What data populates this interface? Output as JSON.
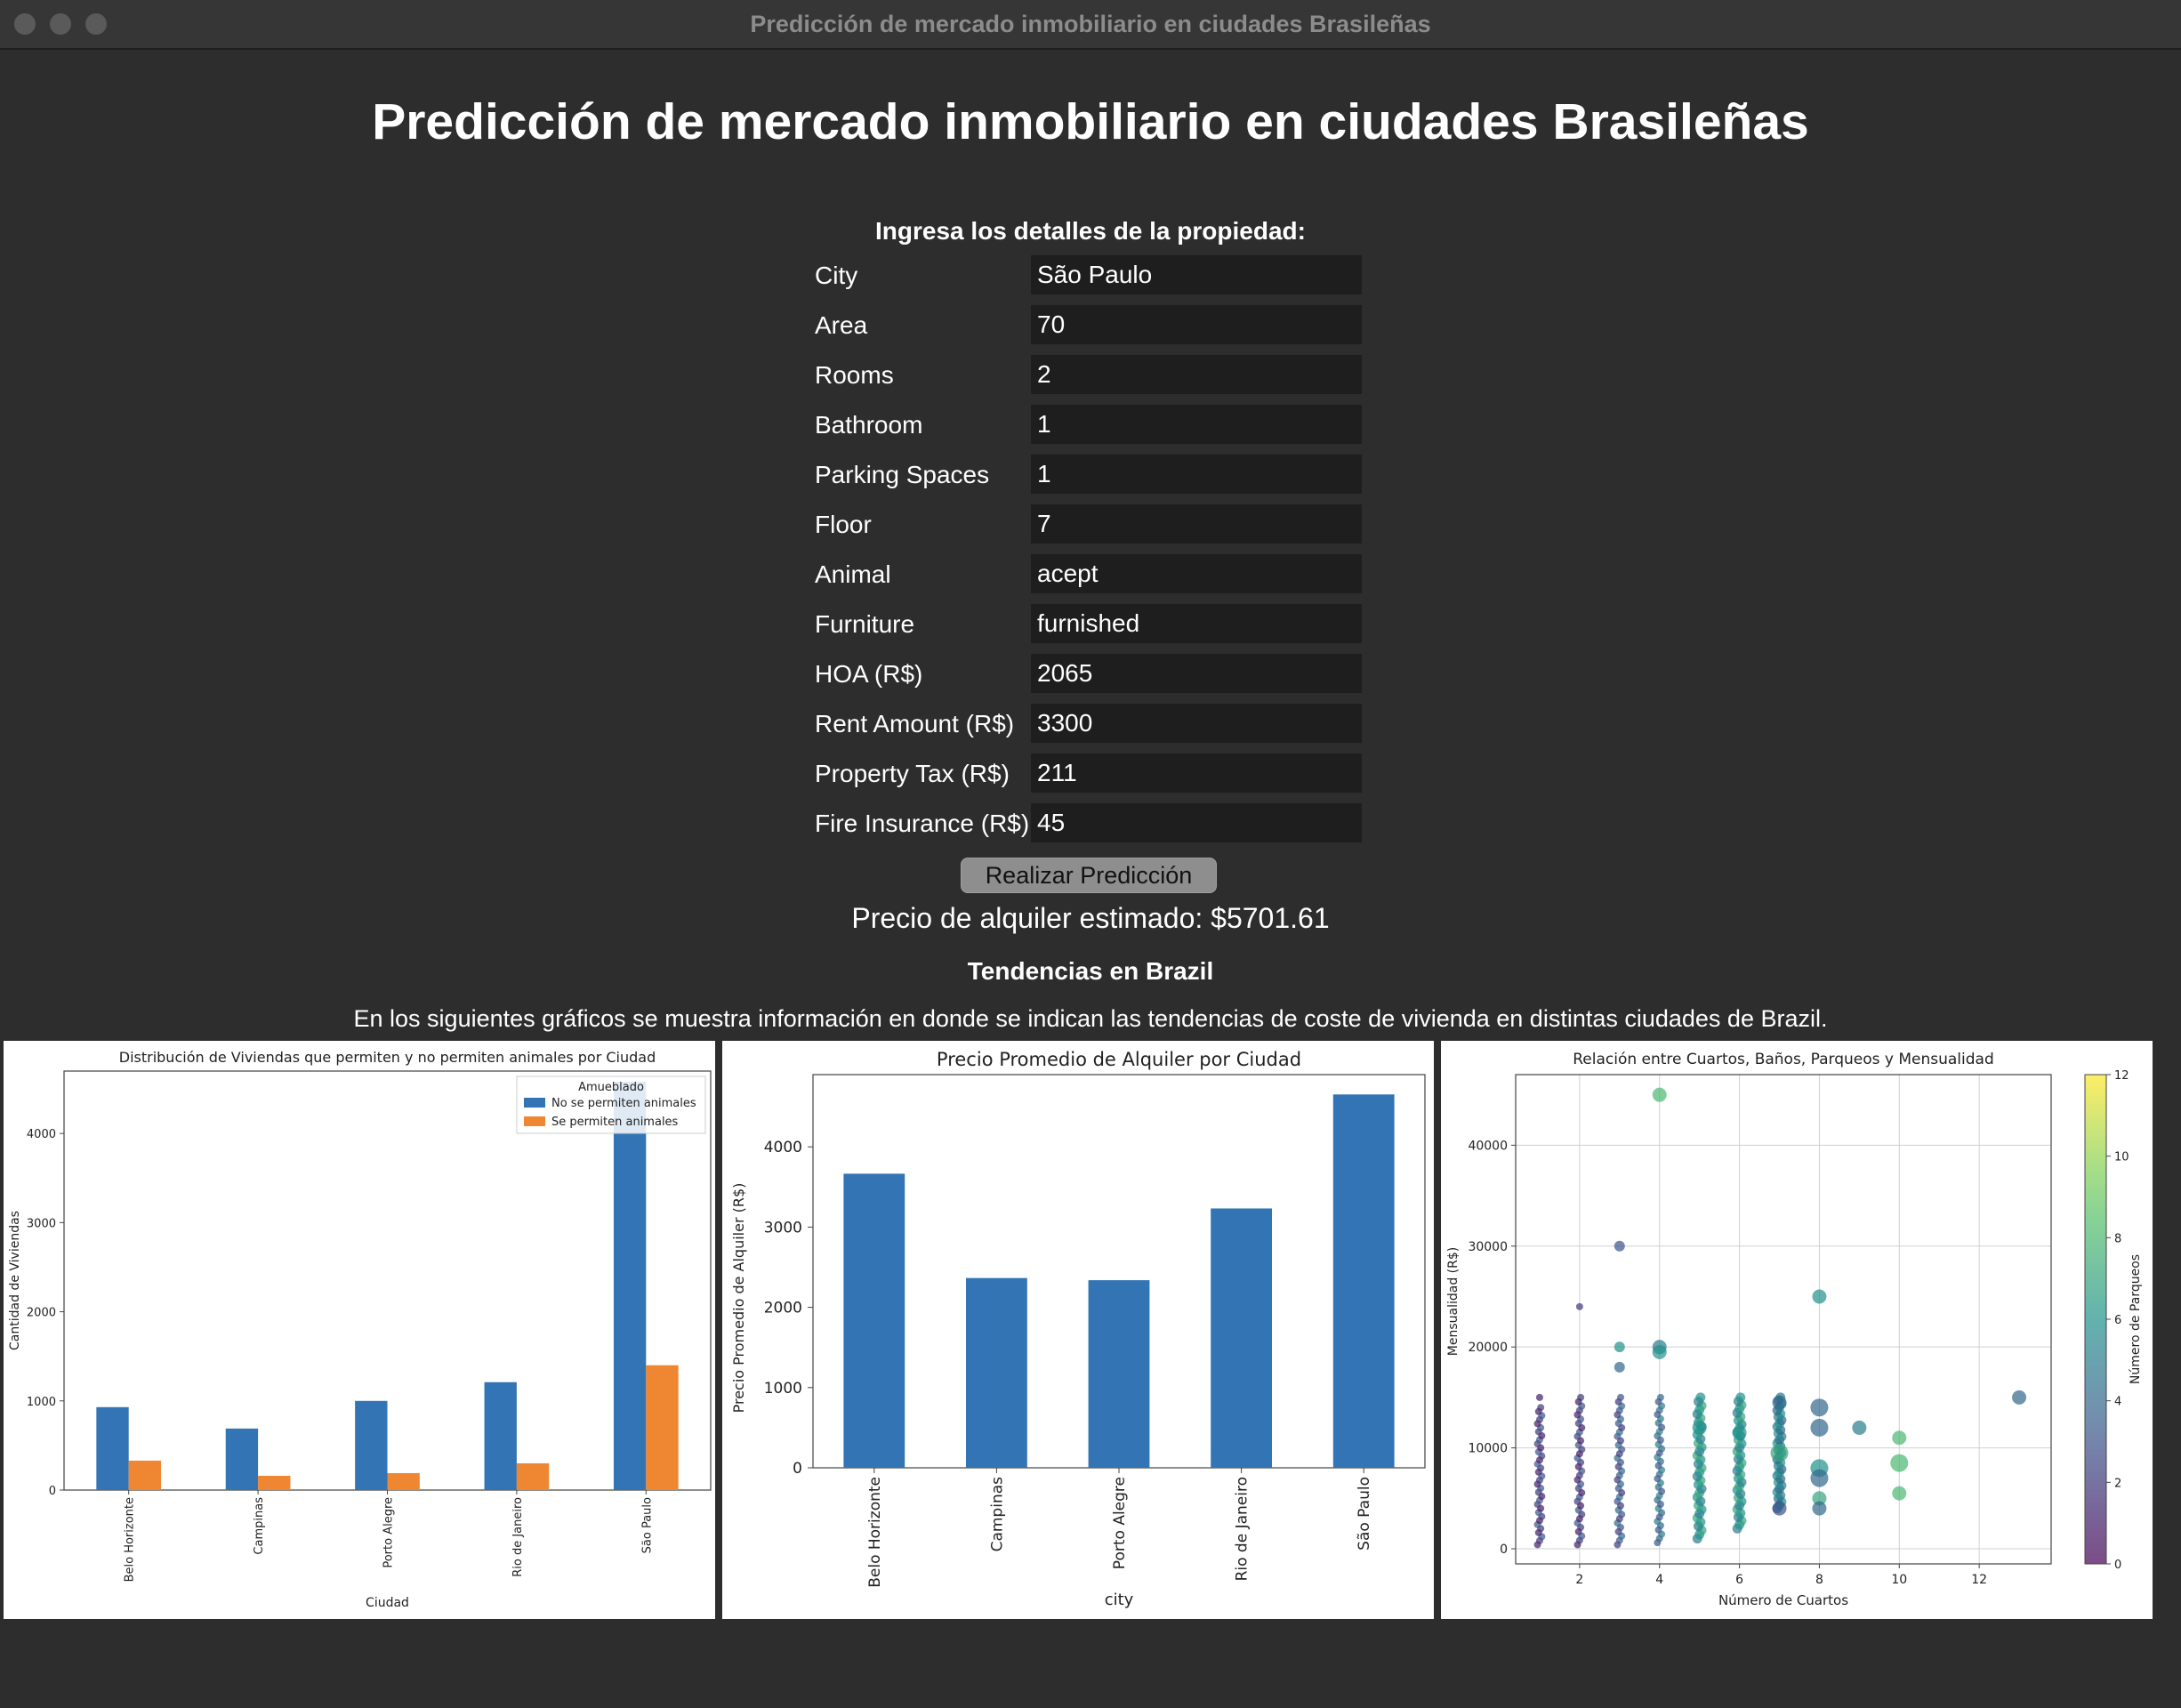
{
  "window": {
    "title": "Predicción de mercado inmobiliario en ciudades Brasileñas"
  },
  "header": {
    "title": "Predicción de mercado inmobiliario en ciudades Brasileñas"
  },
  "form": {
    "title": "Ingresa los detalles de la propiedad:",
    "fields": [
      {
        "label": "City",
        "value": "São Paulo"
      },
      {
        "label": "Area",
        "value": "70"
      },
      {
        "label": "Rooms",
        "value": "2"
      },
      {
        "label": "Bathroom",
        "value": "1"
      },
      {
        "label": "Parking Spaces",
        "value": "1"
      },
      {
        "label": "Floor",
        "value": "7"
      },
      {
        "label": "Animal",
        "value": "acept"
      },
      {
        "label": "Furniture",
        "value": "furnished"
      },
      {
        "label": "HOA (R$)",
        "value": "2065"
      },
      {
        "label": "Rent Amount (R$)",
        "value": "3300"
      },
      {
        "label": "Property Tax (R$)",
        "value": "211"
      },
      {
        "label": "Fire Insurance (R$)",
        "value": "45"
      }
    ],
    "submit_label": "Realizar Predicción",
    "result_text": "Precio de alquiler estimado: $5701.61"
  },
  "trends": {
    "title": "Tendencias en Brazil",
    "description": "En los siguientes gráficos se muestra información en donde se indican las tendencias de coste de vivienda en distintas ciudades de Brazil."
  },
  "chart_data": [
    {
      "type": "bar",
      "title": "Distribución de Viviendas que permiten y no permiten animales por Ciudad",
      "xlabel": "Ciudad",
      "ylabel": "Cantidad de Viviendas",
      "categories": [
        "Belo Horizonte",
        "Campinas",
        "Porto Alegre",
        "Rio de Janeiro",
        "São Paulo"
      ],
      "legend_title": "Amueblado",
      "legend_position": "top-right",
      "ylim": [
        0,
        4700
      ],
      "yticks": [
        0,
        1000,
        2000,
        3000,
        4000
      ],
      "grid": false,
      "series": [
        {
          "name": "No se permiten animales",
          "values": [
            930,
            690,
            1000,
            1210,
            4580
          ],
          "color": "#3274b4"
        },
        {
          "name": "Se permiten animales",
          "values": [
            330,
            160,
            190,
            300,
            1400
          ],
          "color": "#ee8632"
        }
      ]
    },
    {
      "type": "bar",
      "title": "Precio Promedio de Alquiler por Ciudad",
      "xlabel": "city",
      "ylabel": "Precio Promedio de Alquiler (R$)",
      "categories": [
        "Belo Horizonte",
        "Campinas",
        "Porto Alegre",
        "Rio de Janeiro",
        "São Paulo"
      ],
      "values": [
        3665,
        2365,
        2338,
        3232,
        4653
      ],
      "ylim": [
        0,
        4900
      ],
      "yticks": [
        0,
        1000,
        2000,
        3000,
        4000
      ],
      "color": "#3274b4",
      "grid": false
    },
    {
      "type": "scatter",
      "title": "Relación entre Cuartos, Baños, Parqueos y Mensualidad",
      "xlabel": "Número de Cuartos",
      "ylabel": "Mensualidad (R$)",
      "colorbar_label": "Número de Parqueos",
      "colorbar_ticks": [
        0,
        2,
        4,
        6,
        8,
        10,
        12
      ],
      "colormap": "viridis",
      "xlim": [
        0.4,
        13.8
      ],
      "ylim": [
        -1500,
        47000
      ],
      "xticks": [
        2,
        4,
        6,
        8,
        10,
        12
      ],
      "yticks": [
        0,
        10000,
        20000,
        30000,
        40000
      ],
      "grid": true,
      "columns": [
        {
          "x": 1,
          "ymin": 400,
          "ymax": 14000,
          "c": 1
        },
        {
          "x": 2,
          "ymin": 400,
          "ymax": 15000,
          "c": 1
        },
        {
          "x": 3,
          "ymin": 400,
          "ymax": 15000,
          "c": 2
        },
        {
          "x": 4,
          "ymin": 600,
          "ymax": 15000,
          "c": 3
        },
        {
          "x": 5,
          "ymin": 1000,
          "ymax": 15000,
          "c": 5
        },
        {
          "x": 6,
          "ymin": 2000,
          "ymax": 15000,
          "c": 5
        },
        {
          "x": 7,
          "ymin": 4000,
          "ymax": 15000,
          "c": 4
        }
      ],
      "points": [
        {
          "x": 1,
          "y": 15000,
          "s": 1,
          "c": 1
        },
        {
          "x": 2,
          "y": 24000,
          "s": 1,
          "c": 2
        },
        {
          "x": 3,
          "y": 30000,
          "s": 2,
          "c": 3
        },
        {
          "x": 3,
          "y": 20000,
          "s": 2,
          "c": 6
        },
        {
          "x": 3,
          "y": 18000,
          "s": 2,
          "c": 4
        },
        {
          "x": 4,
          "y": 45000,
          "s": 3,
          "c": 8
        },
        {
          "x": 4,
          "y": 20000,
          "s": 3,
          "c": 5
        },
        {
          "x": 4,
          "y": 19500,
          "s": 3,
          "c": 6
        },
        {
          "x": 5,
          "y": 12000,
          "s": 3,
          "c": 6
        },
        {
          "x": 6,
          "y": 11500,
          "s": 3,
          "c": 6
        },
        {
          "x": 7,
          "y": 14500,
          "s": 3,
          "c": 4
        },
        {
          "x": 7,
          "y": 9500,
          "s": 4,
          "c": 7
        },
        {
          "x": 7,
          "y": 4000,
          "s": 3,
          "c": 3
        },
        {
          "x": 8,
          "y": 25000,
          "s": 3,
          "c": 6
        },
        {
          "x": 8,
          "y": 14000,
          "s": 4,
          "c": 4
        },
        {
          "x": 8,
          "y": 12000,
          "s": 4,
          "c": 4
        },
        {
          "x": 8,
          "y": 8000,
          "s": 4,
          "c": 6
        },
        {
          "x": 8,
          "y": 7000,
          "s": 4,
          "c": 4
        },
        {
          "x": 8,
          "y": 5000,
          "s": 3,
          "c": 7
        },
        {
          "x": 8,
          "y": 4000,
          "s": 3,
          "c": 4
        },
        {
          "x": 9,
          "y": 12000,
          "s": 3,
          "c": 5
        },
        {
          "x": 10,
          "y": 11000,
          "s": 3,
          "c": 8
        },
        {
          "x": 10,
          "y": 8500,
          "s": 4,
          "c": 8
        },
        {
          "x": 10,
          "y": 5500,
          "s": 3,
          "c": 8
        },
        {
          "x": 13,
          "y": 15000,
          "s": 3,
          "c": 4
        }
      ]
    }
  ]
}
